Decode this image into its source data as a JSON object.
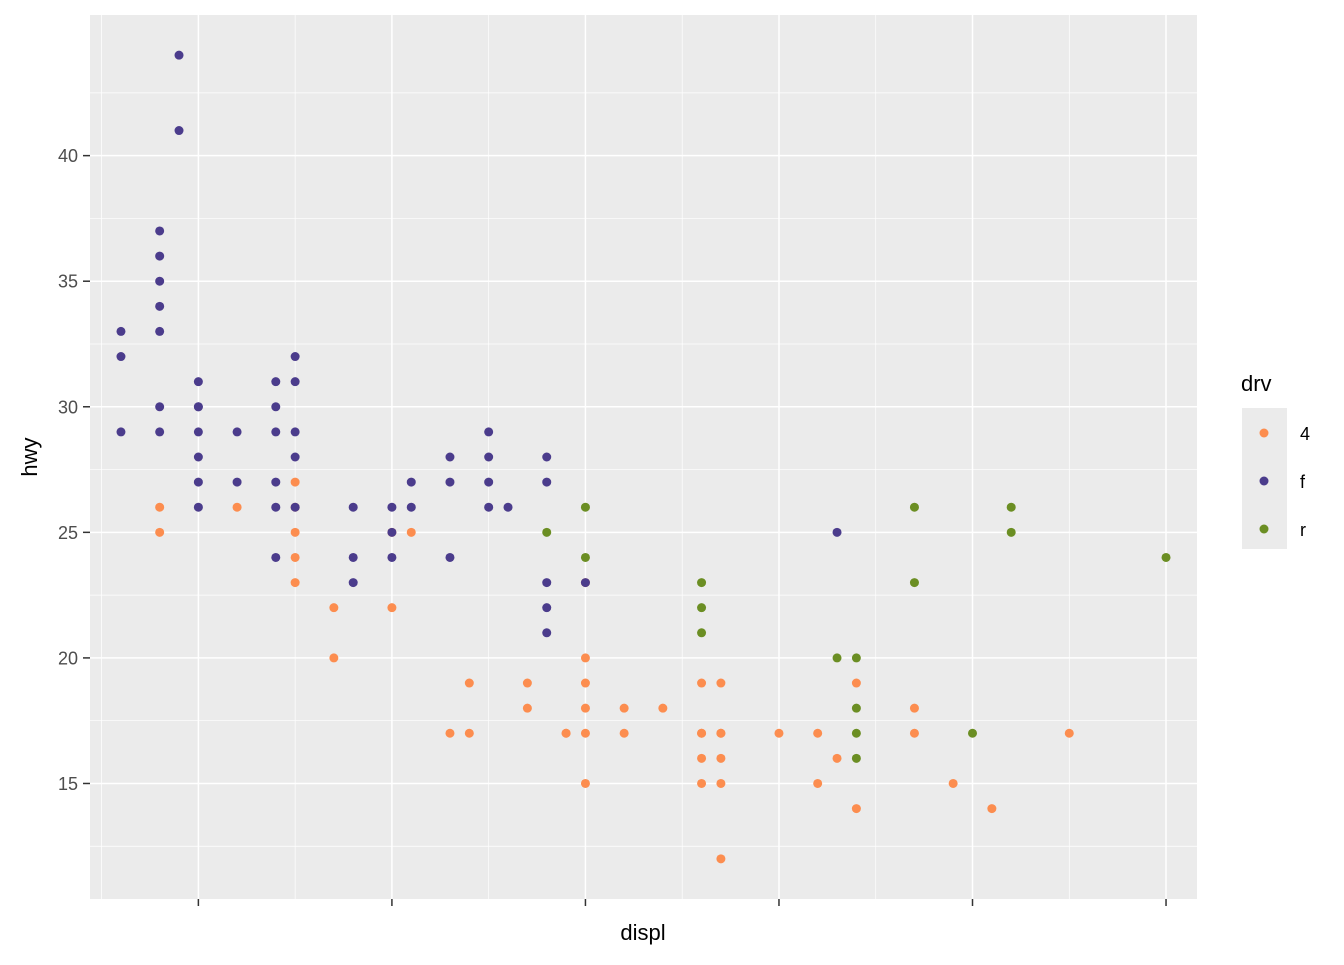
{
  "chart_data": {
    "type": "scatter",
    "xlabel": "displ",
    "ylabel": "hwy",
    "xlim": [
      1.44,
      7.16
    ],
    "ylim": [
      10.4,
      45.6
    ],
    "x_ticks": [
      2,
      3,
      4,
      5,
      6,
      7
    ],
    "y_ticks": [
      15,
      20,
      25,
      30,
      35,
      40
    ],
    "y_tick_labels": [
      "15",
      "20",
      "25",
      "30",
      "35",
      "40"
    ],
    "grid": true,
    "legend": {
      "title": "drv",
      "position": "right",
      "entries": [
        "4",
        "f",
        "r"
      ]
    },
    "colors": {
      "4": "#FC8D4F",
      "f": "#4B3C8C",
      "r": "#6B8E23"
    },
    "panel_background": "#EBEBEB",
    "series": [
      {
        "name": "4",
        "x": [
          1.8,
          1.8,
          2.2,
          2.5,
          2.5,
          2.5,
          2.5,
          2.5,
          2.7,
          2.7,
          3.0,
          3.0,
          3.1,
          3.3,
          3.4,
          3.4,
          3.7,
          3.7,
          3.9,
          3.9,
          4.0,
          4.0,
          4.0,
          4.0,
          4.0,
          4.0,
          4.2,
          4.2,
          4.4,
          4.6,
          4.6,
          4.6,
          4.6,
          4.6,
          4.7,
          4.7,
          4.7,
          4.7,
          4.7,
          4.7,
          5.0,
          5.2,
          5.2,
          5.3,
          5.4,
          5.4,
          5.7,
          5.7,
          5.9,
          6.1,
          6.5
        ],
        "y": [
          26,
          25,
          26,
          27,
          26,
          25,
          24,
          23,
          22,
          20,
          22,
          25,
          25,
          17,
          17,
          19,
          19,
          18,
          17,
          17,
          20,
          19,
          18,
          17,
          15,
          23,
          18,
          17,
          18,
          19,
          17,
          16,
          15,
          17,
          19,
          17,
          16,
          15,
          12,
          17,
          17,
          17,
          15,
          16,
          19,
          14,
          18,
          17,
          15,
          14,
          17
        ]
      },
      {
        "name": "f",
        "x": [
          1.6,
          1.6,
          1.6,
          1.8,
          1.8,
          1.8,
          1.8,
          1.8,
          1.8,
          1.8,
          1.9,
          1.9,
          2.0,
          2.0,
          2.0,
          2.0,
          2.0,
          2.0,
          2.0,
          2.2,
          2.2,
          2.4,
          2.4,
          2.4,
          2.4,
          2.4,
          2.4,
          2.5,
          2.5,
          2.5,
          2.5,
          2.5,
          2.8,
          2.8,
          2.8,
          3.0,
          3.0,
          3.0,
          3.1,
          3.1,
          3.3,
          3.3,
          3.3,
          3.5,
          3.5,
          3.5,
          3.5,
          3.6,
          3.8,
          3.8,
          3.8,
          3.8,
          3.8,
          4.0,
          5.3
        ],
        "y": [
          33,
          32,
          29,
          37,
          36,
          35,
          34,
          33,
          30,
          29,
          44,
          41,
          31,
          30,
          29,
          28,
          27,
          26,
          30,
          29,
          27,
          31,
          30,
          29,
          27,
          26,
          24,
          32,
          31,
          29,
          28,
          26,
          24,
          26,
          23,
          26,
          25,
          24,
          26,
          27,
          28,
          27,
          24,
          29,
          28,
          27,
          26,
          26,
          28,
          27,
          23,
          22,
          21,
          23,
          25
        ]
      },
      {
        "name": "r",
        "x": [
          3.8,
          4.0,
          4.0,
          4.6,
          4.6,
          4.6,
          5.3,
          5.4,
          5.4,
          5.4,
          5.4,
          5.7,
          5.7,
          6.0,
          6.2,
          6.2,
          7.0
        ],
        "y": [
          25,
          26,
          24,
          23,
          22,
          21,
          20,
          20,
          18,
          17,
          16,
          26,
          23,
          17,
          26,
          25,
          24
        ]
      }
    ]
  }
}
